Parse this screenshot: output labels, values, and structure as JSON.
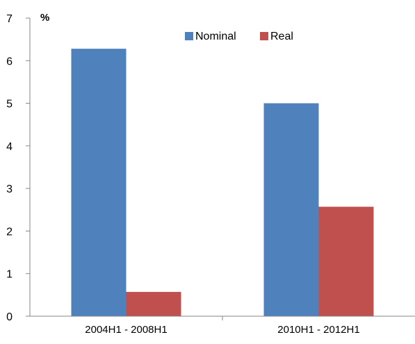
{
  "chart_data": {
    "type": "bar",
    "title": "",
    "xlabel": "",
    "ylabel": "%",
    "categories": [
      "2004H1 - 2008H1",
      "2010H1 - 2012H1"
    ],
    "series": [
      {
        "name": "Nominal",
        "values": [
          6.28,
          5.0
        ],
        "color": "#4F81BD"
      },
      {
        "name": "Real",
        "values": [
          0.57,
          2.57
        ],
        "color": "#C0504D"
      }
    ],
    "ylim": [
      0,
      7
    ],
    "yticks": [
      "0",
      "1",
      "2",
      "3",
      "4",
      "5",
      "6",
      "7"
    ],
    "grid": false,
    "legend_position": "top-right"
  }
}
